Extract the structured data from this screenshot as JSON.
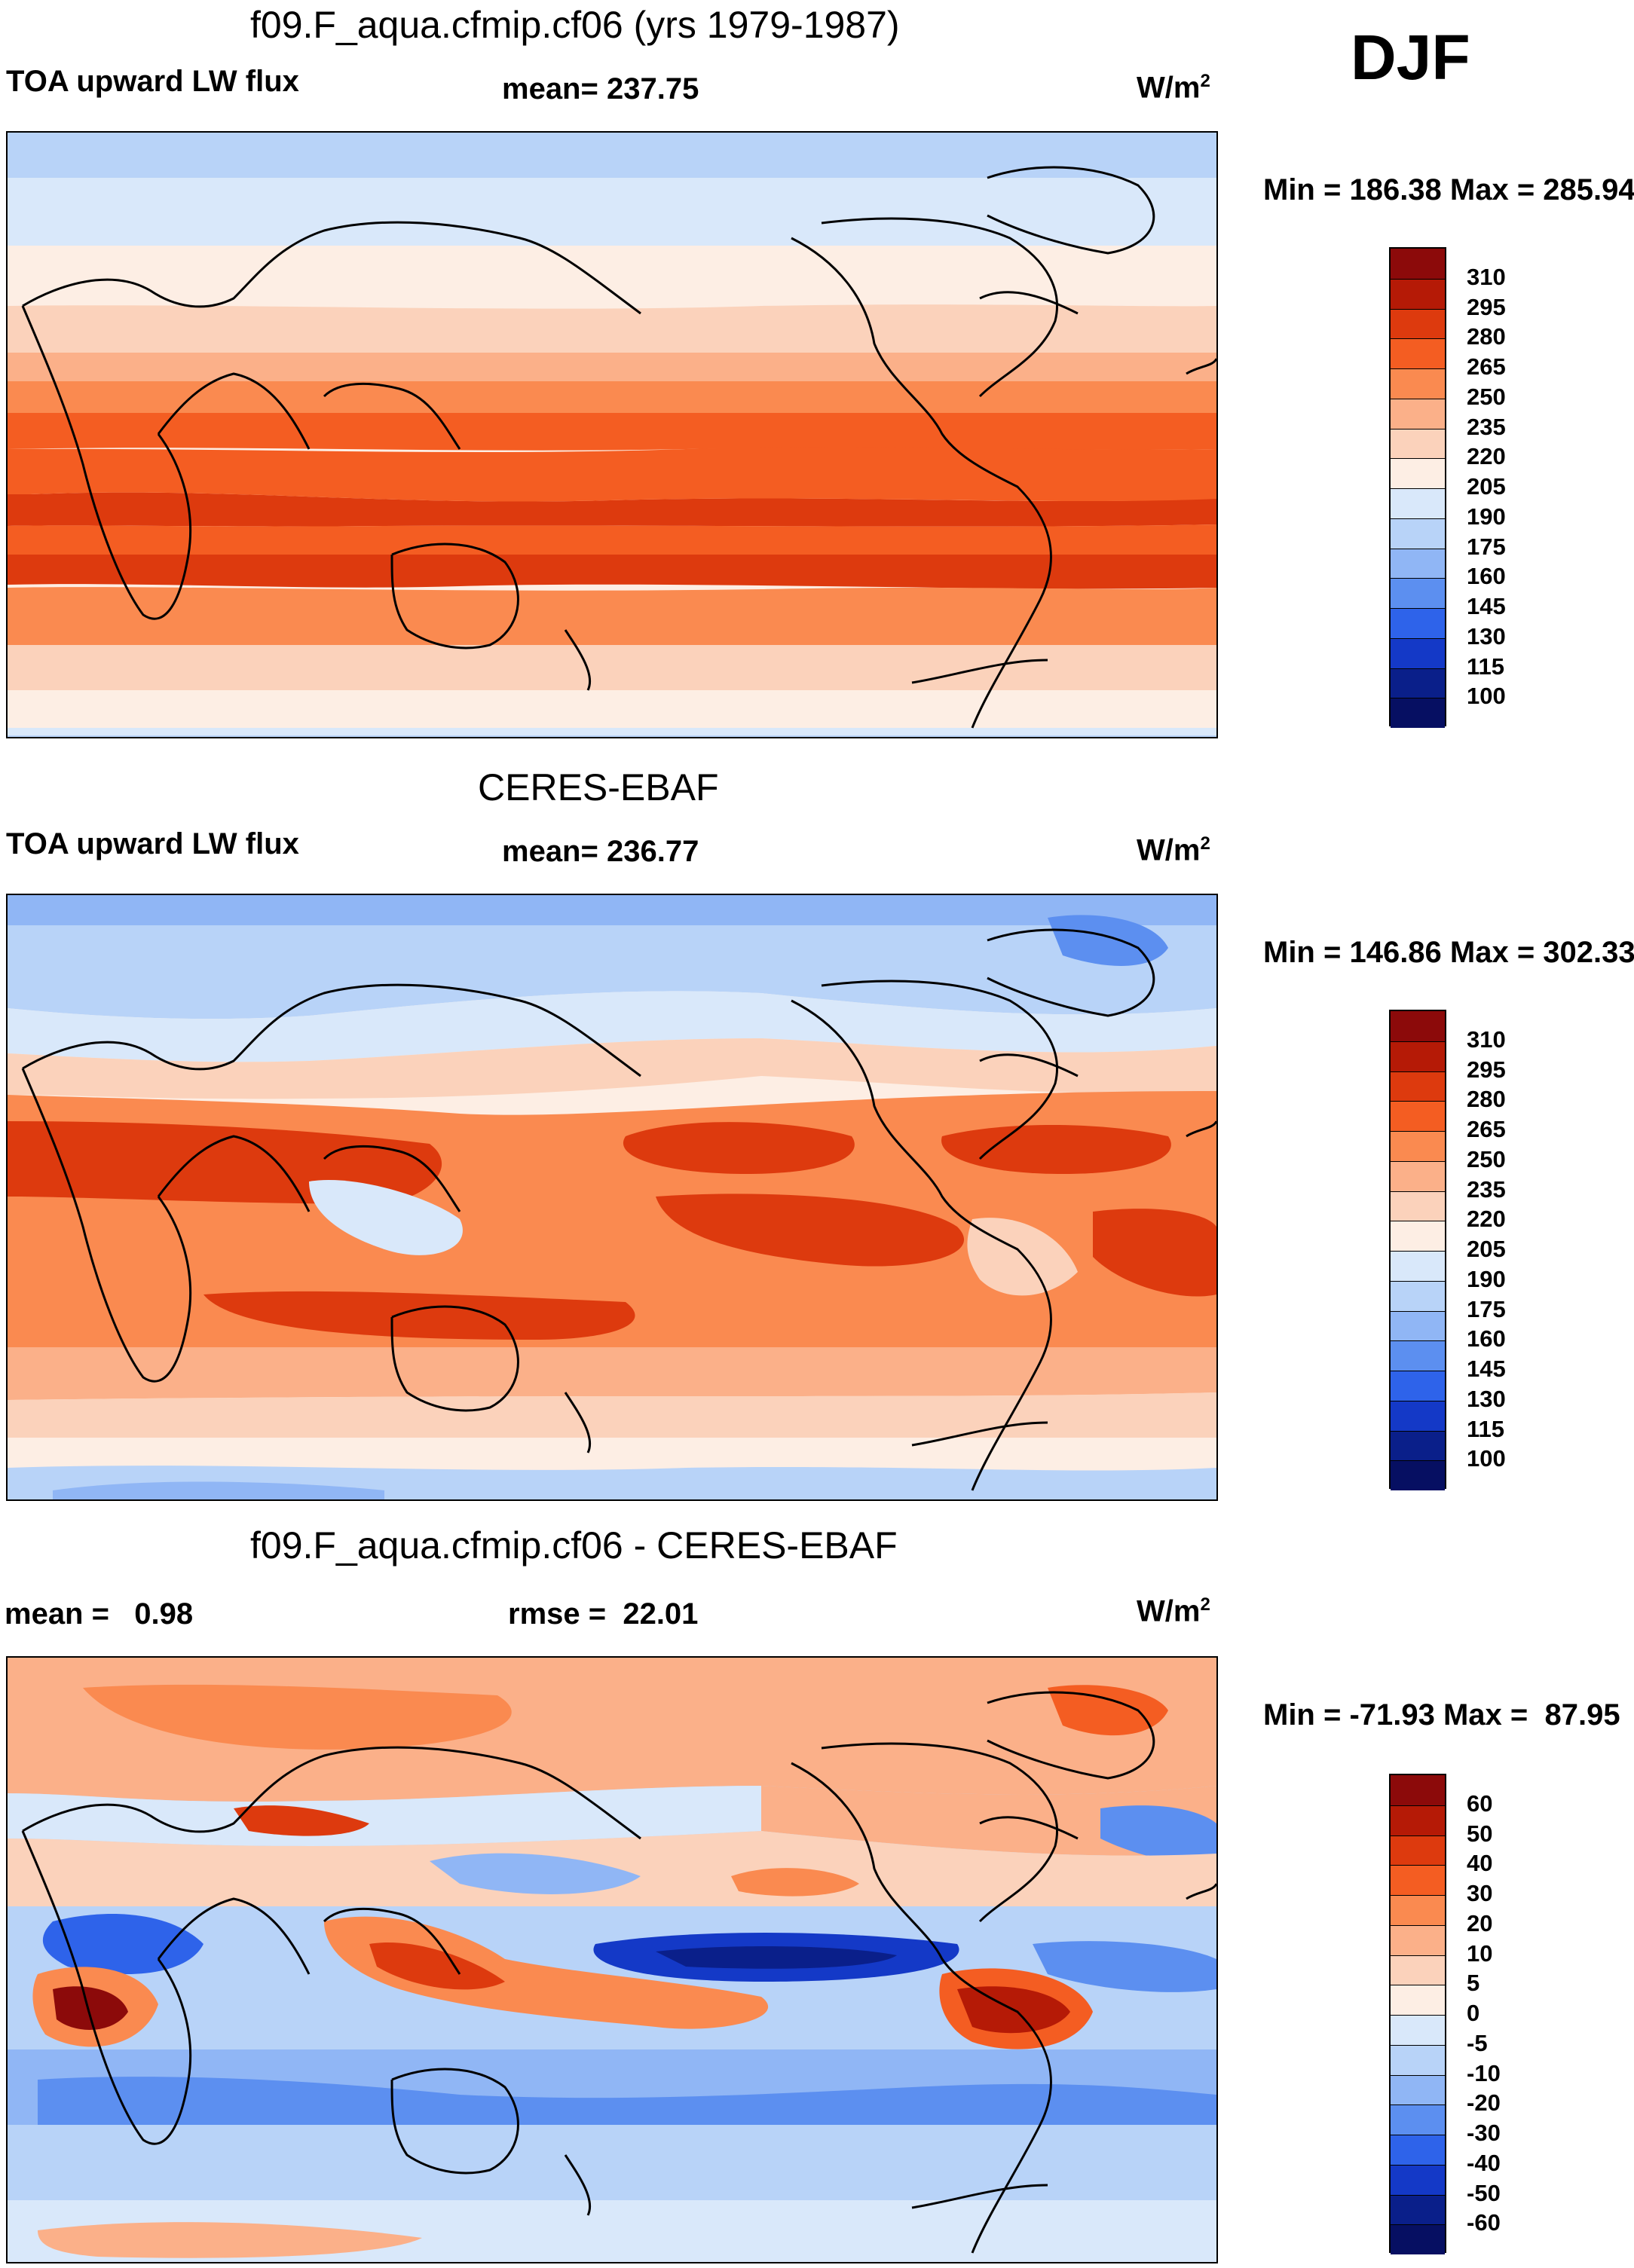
{
  "season": "DJF",
  "panels": [
    {
      "id": "model",
      "title": "f09.F_aqua.cfmip.cf06 (yrs 1979-1987)",
      "left_label": "TOA upward LW flux",
      "center_label": "mean= 237.75",
      "units": "W/m",
      "units_sup": "2",
      "minmax": "Min = 186.38 Max = 285.94",
      "colorbar": {
        "levels": [
          "310",
          "295",
          "280",
          "265",
          "250",
          "235",
          "220",
          "205",
          "190",
          "175",
          "160",
          "145",
          "130",
          "115",
          "100"
        ],
        "colors": [
          "#8c0a0a",
          "#b51a06",
          "#dd3a0e",
          "#f45d22",
          "#fa8a50",
          "#fbb089",
          "#fbd2bb",
          "#fdeee4",
          "#d9e8fa",
          "#b8d3f8",
          "#90b6f5",
          "#5c8ff0",
          "#2e63ea",
          "#1439c7",
          "#0a1f8a",
          "#060f62"
        ]
      }
    },
    {
      "id": "obs",
      "title": "CERES-EBAF",
      "left_label": "TOA upward LW flux",
      "center_label": "mean= 236.77",
      "units": "W/m",
      "units_sup": "2",
      "minmax": "Min = 146.86 Max = 302.33",
      "colorbar": {
        "levels": [
          "310",
          "295",
          "280",
          "265",
          "250",
          "235",
          "220",
          "205",
          "190",
          "175",
          "160",
          "145",
          "130",
          "115",
          "100"
        ],
        "colors": [
          "#8c0a0a",
          "#b51a06",
          "#dd3a0e",
          "#f45d22",
          "#fa8a50",
          "#fbb089",
          "#fbd2bb",
          "#fdeee4",
          "#d9e8fa",
          "#b8d3f8",
          "#90b6f5",
          "#5c8ff0",
          "#2e63ea",
          "#1439c7",
          "#0a1f8a",
          "#060f62"
        ]
      }
    },
    {
      "id": "diff",
      "title": "f09.F_aqua.cfmip.cf06 - CERES-EBAF",
      "left_label": "mean =   0.98",
      "center_label": "rmse =  22.01",
      "units": "W/m",
      "units_sup": "2",
      "minmax": "Min = -71.93 Max =  87.95",
      "colorbar": {
        "levels": [
          "60",
          "50",
          "40",
          "30",
          "20",
          "10",
          "5",
          "0",
          "-5",
          "-10",
          "-20",
          "-30",
          "-40",
          "-50",
          "-60"
        ],
        "colors": [
          "#8c0a0a",
          "#b51a06",
          "#dd3a0e",
          "#f45d22",
          "#fa8a50",
          "#fbb089",
          "#fbd2bb",
          "#fdeee4",
          "#d9e8fa",
          "#b8d3f8",
          "#90b6f5",
          "#5c8ff0",
          "#2e63ea",
          "#1439c7",
          "#0a1f8a",
          "#060f62"
        ]
      }
    }
  ]
}
